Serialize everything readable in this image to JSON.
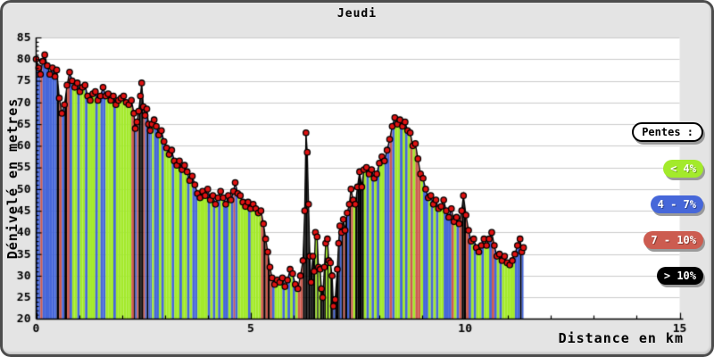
{
  "title": "Jeudi",
  "axes": {
    "x_label": "Distance en km",
    "y_label": "Dénivelé en metres"
  },
  "legend": {
    "title": "Pentes :",
    "items": [
      {
        "label": "< 4%",
        "color": "#a3ea2b"
      },
      {
        "label": "4 - 7%",
        "color": "#4667d9"
      },
      {
        "label": "7 - 10%",
        "color": "#cc5c50"
      },
      {
        "label": "> 10%",
        "color": "#000000"
      }
    ]
  },
  "chart_data": {
    "type": "area",
    "title": "Jeudi",
    "xlabel": "Distance en km",
    "ylabel": "Dénivelé en metres",
    "xlim": [
      0,
      15
    ],
    "ylim": [
      20,
      85
    ],
    "x_major_ticks": [
      0,
      5,
      10,
      15
    ],
    "x_minor_step": 1,
    "y_major_step": 5,
    "y_minor_step": 1,
    "grid": "horizontal",
    "legend_position": "right",
    "colors": {
      "plot_bg": "#ffffff",
      "grid": "#cccccc",
      "axis": "#000000",
      "line": "#000000",
      "marker": "#e01212",
      "marker_outline": "#000000"
    },
    "slope_classes": [
      {
        "label": "< 4%",
        "max_abs_slope_pct": 4,
        "color": "#a3ea2b"
      },
      {
        "label": "4 - 7%",
        "max_abs_slope_pct": 7,
        "color": "#4667d9"
      },
      {
        "label": "7 - 10%",
        "max_abs_slope_pct": 10,
        "color": "#cc5c50"
      },
      {
        "label": "> 10%",
        "max_abs_slope_pct": null,
        "color": "#000000"
      }
    ],
    "points": [
      [
        0,
        80
      ],
      [
        0.06,
        78
      ],
      [
        0.1,
        76.5
      ],
      [
        0.15,
        79.5
      ],
      [
        0.2,
        81
      ],
      [
        0.26,
        78.5
      ],
      [
        0.32,
        76.5
      ],
      [
        0.38,
        78
      ],
      [
        0.44,
        76
      ],
      [
        0.48,
        77.5
      ],
      [
        0.54,
        71
      ],
      [
        0.6,
        67.5
      ],
      [
        0.66,
        69.5
      ],
      [
        0.72,
        74
      ],
      [
        0.78,
        77
      ],
      [
        0.84,
        75
      ],
      [
        0.9,
        73.5
      ],
      [
        0.96,
        74.5
      ],
      [
        1.02,
        72.5
      ],
      [
        1.08,
        73.5
      ],
      [
        1.14,
        74
      ],
      [
        1.2,
        71.5
      ],
      [
        1.26,
        70.5
      ],
      [
        1.32,
        72
      ],
      [
        1.38,
        72.5
      ],
      [
        1.44,
        70.5
      ],
      [
        1.5,
        71.5
      ],
      [
        1.56,
        73.5
      ],
      [
        1.62,
        71.5
      ],
      [
        1.68,
        72
      ],
      [
        1.74,
        70.5
      ],
      [
        1.8,
        71.5
      ],
      [
        1.86,
        69.5
      ],
      [
        1.92,
        70.5
      ],
      [
        1.98,
        71
      ],
      [
        2.04,
        71.5
      ],
      [
        2.1,
        70
      ],
      [
        2.16,
        69.5
      ],
      [
        2.22,
        70.5
      ],
      [
        2.28,
        67.5
      ],
      [
        2.31,
        64
      ],
      [
        2.35,
        65.5
      ],
      [
        2.39,
        68
      ],
      [
        2.43,
        71.5
      ],
      [
        2.46,
        74.5
      ],
      [
        2.5,
        69
      ],
      [
        2.54,
        67
      ],
      [
        2.58,
        68.5
      ],
      [
        2.62,
        65
      ],
      [
        2.66,
        63.5
      ],
      [
        2.7,
        65
      ],
      [
        2.75,
        66
      ],
      [
        2.8,
        64.5
      ],
      [
        2.86,
        62.5
      ],
      [
        2.92,
        63.5
      ],
      [
        2.98,
        61
      ],
      [
        3.04,
        59.5
      ],
      [
        3.1,
        58
      ],
      [
        3.16,
        59
      ],
      [
        3.22,
        56.5
      ],
      [
        3.28,
        55.5
      ],
      [
        3.34,
        56.5
      ],
      [
        3.4,
        54.5
      ],
      [
        3.46,
        55.5
      ],
      [
        3.52,
        54
      ],
      [
        3.58,
        52
      ],
      [
        3.64,
        53
      ],
      [
        3.7,
        51
      ],
      [
        3.76,
        49
      ],
      [
        3.82,
        48
      ],
      [
        3.88,
        49.5
      ],
      [
        3.94,
        48.5
      ],
      [
        4,
        50
      ],
      [
        4.06,
        47.5
      ],
      [
        4.12,
        48.5
      ],
      [
        4.18,
        46.5
      ],
      [
        4.24,
        48
      ],
      [
        4.3,
        49.5
      ],
      [
        4.36,
        48
      ],
      [
        4.42,
        46.5
      ],
      [
        4.48,
        48.5
      ],
      [
        4.54,
        47.5
      ],
      [
        4.6,
        49.5
      ],
      [
        4.64,
        51.5
      ],
      [
        4.7,
        49
      ],
      [
        4.76,
        48.5
      ],
      [
        4.82,
        47
      ],
      [
        4.88,
        46
      ],
      [
        4.94,
        47
      ],
      [
        5,
        45.5
      ],
      [
        5.06,
        46.5
      ],
      [
        5.12,
        45.5
      ],
      [
        5.18,
        44.5
      ],
      [
        5.24,
        45
      ],
      [
        5.3,
        42
      ],
      [
        5.35,
        38.5
      ],
      [
        5.4,
        35.5
      ],
      [
        5.45,
        32
      ],
      [
        5.5,
        29.5
      ],
      [
        5.56,
        28
      ],
      [
        5.62,
        29
      ],
      [
        5.68,
        28.5
      ],
      [
        5.74,
        29.5
      ],
      [
        5.8,
        27.5
      ],
      [
        5.86,
        29
      ],
      [
        5.92,
        31.5
      ],
      [
        5.98,
        30.5
      ],
      [
        6.04,
        28
      ],
      [
        6.1,
        27
      ],
      [
        6.16,
        30
      ],
      [
        6.22,
        33.5
      ],
      [
        6.26,
        45
      ],
      [
        6.29,
        63
      ],
      [
        6.32,
        58.5
      ],
      [
        6.35,
        46.5
      ],
      [
        6.38,
        34.5
      ],
      [
        6.41,
        28.5
      ],
      [
        6.45,
        34.5
      ],
      [
        6.48,
        31
      ],
      [
        6.51,
        40
      ],
      [
        6.55,
        39
      ],
      [
        6.58,
        32
      ],
      [
        6.62,
        31.5
      ],
      [
        6.65,
        27
      ],
      [
        6.68,
        25
      ],
      [
        6.72,
        32
      ],
      [
        6.75,
        37.5
      ],
      [
        6.79,
        38.5
      ],
      [
        6.82,
        33.5
      ],
      [
        6.86,
        33
      ],
      [
        6.9,
        30
      ],
      [
        6.93,
        23
      ],
      [
        6.97,
        24.5
      ],
      [
        7.02,
        31.5
      ],
      [
        7.05,
        37.5
      ],
      [
        7.08,
        41.5
      ],
      [
        7.12,
        40
      ],
      [
        7.16,
        43
      ],
      [
        7.2,
        40.5
      ],
      [
        7.25,
        44.5
      ],
      [
        7.3,
        46.5
      ],
      [
        7.34,
        50
      ],
      [
        7.39,
        47.5
      ],
      [
        7.44,
        46.5
      ],
      [
        7.49,
        50.5
      ],
      [
        7.54,
        54
      ],
      [
        7.59,
        50.5
      ],
      [
        7.64,
        54.5
      ],
      [
        7.7,
        55
      ],
      [
        7.76,
        53.5
      ],
      [
        7.82,
        54.5
      ],
      [
        7.88,
        52.5
      ],
      [
        7.94,
        53.5
      ],
      [
        8,
        56
      ],
      [
        8.06,
        57.5
      ],
      [
        8.12,
        56.5
      ],
      [
        8.18,
        59
      ],
      [
        8.24,
        61.5
      ],
      [
        8.3,
        64.5
      ],
      [
        8.36,
        66.5
      ],
      [
        8.42,
        65
      ],
      [
        8.48,
        66
      ],
      [
        8.54,
        64.5
      ],
      [
        8.6,
        65.5
      ],
      [
        8.66,
        63.5
      ],
      [
        8.72,
        63
      ],
      [
        8.78,
        60
      ],
      [
        8.84,
        60.5
      ],
      [
        8.9,
        57
      ],
      [
        8.96,
        53.5
      ],
      [
        9.02,
        52.5
      ],
      [
        9.08,
        50
      ],
      [
        9.14,
        48
      ],
      [
        9.2,
        48.5
      ],
      [
        9.26,
        46.5
      ],
      [
        9.32,
        47.5
      ],
      [
        9.38,
        45.5
      ],
      [
        9.44,
        46
      ],
      [
        9.5,
        47.5
      ],
      [
        9.56,
        45
      ],
      [
        9.62,
        43.5
      ],
      [
        9.68,
        45.5
      ],
      [
        9.74,
        42.5
      ],
      [
        9.8,
        43.5
      ],
      [
        9.86,
        42
      ],
      [
        9.92,
        45
      ],
      [
        9.96,
        48.5
      ],
      [
        10.02,
        44
      ],
      [
        10.08,
        40.5
      ],
      [
        10.14,
        38
      ],
      [
        10.2,
        38.5
      ],
      [
        10.26,
        36.5
      ],
      [
        10.32,
        35.5
      ],
      [
        10.38,
        37
      ],
      [
        10.44,
        38.5
      ],
      [
        10.5,
        37
      ],
      [
        10.56,
        38.5
      ],
      [
        10.62,
        40
      ],
      [
        10.68,
        37
      ],
      [
        10.74,
        34.5
      ],
      [
        10.8,
        35
      ],
      [
        10.86,
        33.5
      ],
      [
        10.92,
        34.5
      ],
      [
        10.98,
        33
      ],
      [
        11.04,
        32.5
      ],
      [
        11.1,
        33.5
      ],
      [
        11.16,
        35
      ],
      [
        11.22,
        37
      ],
      [
        11.28,
        38.5
      ],
      [
        11.32,
        35.5
      ],
      [
        11.36,
        36.5
      ]
    ]
  }
}
